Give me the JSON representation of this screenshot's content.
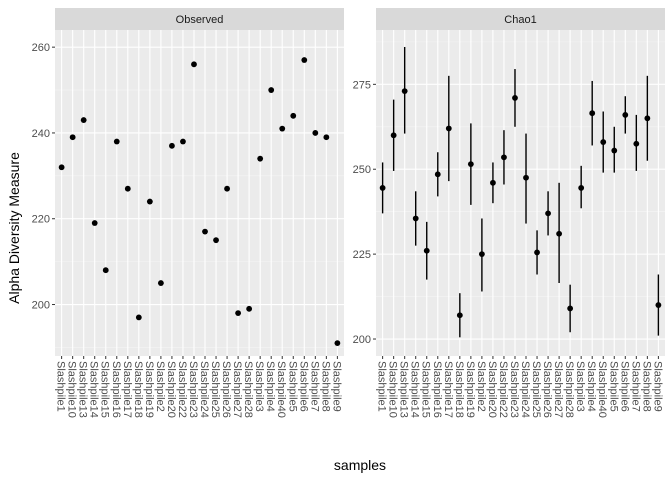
{
  "colors": {
    "panel_background": "#ebebeb",
    "major_grid": "#ffffff",
    "minor_grid": "#f5f5f5",
    "strip_background": "#d9d9d9",
    "point": "#000000",
    "tick": "#333333"
  },
  "labels": {
    "ylabel": "Alpha Diversity Measure",
    "xlabel": "samples"
  },
  "chart_data": [
    {
      "type": "scatter",
      "title": "Observed",
      "xlabel": "samples",
      "ylabel": "Alpha Diversity Measure",
      "ylim": [
        188,
        264
      ],
      "yticks": [
        200,
        220,
        240,
        260
      ],
      "grid": true,
      "error_bars": false,
      "categories": [
        "Slashpile1",
        "Slashpile10",
        "Slashpile13",
        "Slashpile14",
        "Slashpile15",
        "Slashpile16",
        "Slashpile17",
        "Slashpile18",
        "Slashpile19",
        "Slashpile2",
        "Slashpile20",
        "Slashpile22",
        "Slashpile23",
        "Slashpile24",
        "Slashpile25",
        "Slashpile26",
        "Slashpile27",
        "Slashpile28",
        "Slashpile3",
        "Slashpile4",
        "Slashpile40",
        "Slashpile5",
        "Slashpile6",
        "Slashpile7",
        "Slashpile8",
        "Slashpile9"
      ],
      "values": [
        232,
        239,
        243,
        219,
        208,
        238,
        227,
        197,
        224,
        205,
        237,
        238,
        256,
        217,
        215,
        227,
        198,
        199,
        234,
        250,
        241,
        244,
        257,
        240,
        239,
        191
      ]
    },
    {
      "type": "scatter",
      "title": "Chao1",
      "xlabel": "samples",
      "ylabel": "Alpha Diversity Measure",
      "ylim": [
        195,
        291
      ],
      "yticks": [
        200,
        225,
        250,
        275
      ],
      "grid": true,
      "error_bars": true,
      "categories": [
        "Slashpile1",
        "Slashpile10",
        "Slashpile13",
        "Slashpile14",
        "Slashpile15",
        "Slashpile16",
        "Slashpile17",
        "Slashpile18",
        "Slashpile19",
        "Slashpile2",
        "Slashpile20",
        "Slashpile22",
        "Slashpile23",
        "Slashpile24",
        "Slashpile25",
        "Slashpile26",
        "Slashpile27",
        "Slashpile28",
        "Slashpile3",
        "Slashpile4",
        "Slashpile40",
        "Slashpile5",
        "Slashpile6",
        "Slashpile7",
        "Slashpile8",
        "Slashpile9"
      ],
      "values": [
        244.5,
        260,
        273,
        235.5,
        226,
        248.5,
        262,
        207,
        251.5,
        225,
        246,
        253.5,
        271,
        247.5,
        225.5,
        237,
        231,
        209,
        244.5,
        266.5,
        258,
        255.5,
        266,
        257.5,
        265,
        210
      ],
      "lower": [
        237,
        249.5,
        260.5,
        227.5,
        217.5,
        242,
        246.5,
        200.5,
        239.5,
        214,
        240,
        245.5,
        262.5,
        234,
        219,
        230.5,
        216.5,
        202,
        238.5,
        257,
        249,
        249,
        260.5,
        249.5,
        252.5,
        201
      ],
      "upper": [
        252,
        270.5,
        286,
        243.5,
        234.5,
        255,
        277.5,
        213.5,
        263.5,
        235.5,
        252,
        261.5,
        279.5,
        260.5,
        232,
        243.5,
        246,
        216,
        251,
        276,
        267,
        262.5,
        271.5,
        266,
        277.5,
        219
      ]
    }
  ]
}
